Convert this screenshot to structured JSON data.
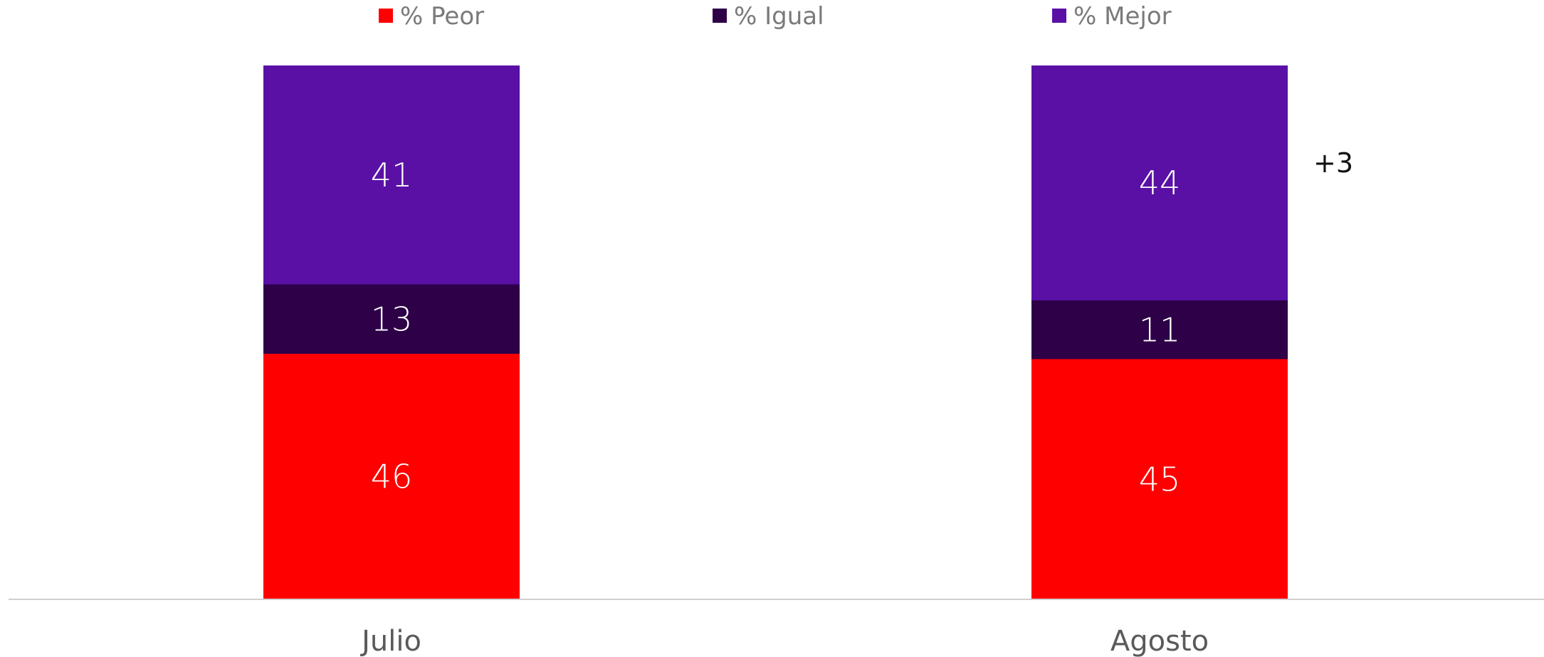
{
  "chart_data": {
    "type": "bar",
    "stacked": true,
    "categories": [
      "Julio",
      "Agosto"
    ],
    "series": [
      {
        "name": "% Peor",
        "values": [
          46,
          45
        ],
        "color": "#ff0000"
      },
      {
        "name": "% Igual",
        "values": [
          13,
          11
        ],
        "color": "#2d0048"
      },
      {
        "name": "% Mejor",
        "values": [
          41,
          44
        ],
        "color": "#5a10a5"
      }
    ],
    "value_labels": {
      "peor": [
        "46",
        "45"
      ],
      "igual": [
        "13",
        "11"
      ],
      "mejor": [
        "41",
        "44"
      ]
    },
    "annotation": {
      "text": "+3",
      "category": "Agosto",
      "series": "% Mejor"
    },
    "ylim": [
      0,
      100
    ],
    "legend_position": "top",
    "grid": false
  }
}
